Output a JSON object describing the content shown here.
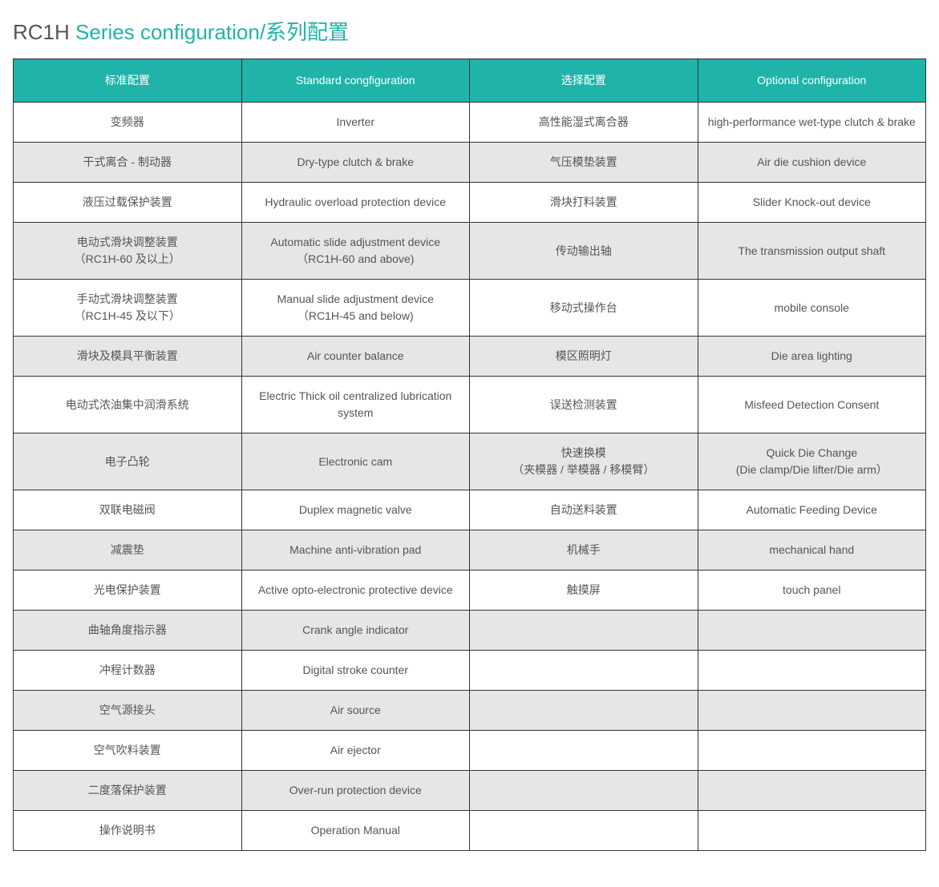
{
  "title": {
    "prefix": "RC1H",
    "main": " Series configuration/系列配置"
  },
  "colors": {
    "header_bg": "#1fb3a9",
    "header_text": "#ffffff",
    "row_odd_bg": "#ffffff",
    "row_even_bg": "#e6e6e6",
    "border": "#333333",
    "cell_text": "#555555",
    "title_prefix": "#555555",
    "title_main": "#21b3a8"
  },
  "table": {
    "type": "table",
    "column_count": 4,
    "headers": [
      "标准配置",
      "Standard congfiguration",
      "选择配置",
      "Optional configuration"
    ],
    "rows": [
      [
        "变频器",
        "Inverter",
        "高性能湿式离合器",
        "high-performance wet-type clutch & brake"
      ],
      [
        "干式离合 - 制动器",
        "Dry-type clutch & brake",
        "气压模垫装置",
        "Air die cushion device"
      ],
      [
        "液压过载保护装置",
        "Hydraulic overload protection device",
        "滑块打料装置",
        "Slider Knock-out device"
      ],
      [
        "电动式滑块调整装置\n（RC1H-60 及以上）",
        "Automatic slide adjustment device\n（RC1H-60 and above)",
        "传动输出轴",
        "The transmission output shaft"
      ],
      [
        "手动式滑块调整装置\n（RC1H-45 及以下）",
        "Manual slide adjustment device\n（RC1H-45 and below)",
        "移动式操作台",
        "mobile console"
      ],
      [
        "滑块及模具平衡装置",
        "Air counter balance",
        "模区照明灯",
        "Die area lighting"
      ],
      [
        "电动式浓油集中润滑系统",
        "Electric Thick oil centralized lubrication system",
        "误送检测装置",
        "Misfeed Detection Consent"
      ],
      [
        "电子凸轮",
        "Electronic cam",
        "快速换模\n（夹模器 / 举模器 / 移模臂）",
        "Quick Die Change\n(Die clamp/Die lifter/Die arm）"
      ],
      [
        "双联电磁阀",
        "Duplex magnetic valve",
        "自动送料装置",
        "Automatic Feeding Device"
      ],
      [
        "减震垫",
        "Machine anti-vibration pad",
        "机械手",
        "mechanical hand"
      ],
      [
        "光电保护装置",
        "Active opto-electronic protective device",
        "触摸屏",
        "touch panel"
      ],
      [
        "曲轴角度指示器",
        "Crank angle indicator",
        "",
        ""
      ],
      [
        "冲程计数器",
        "Digital stroke counter",
        "",
        ""
      ],
      [
        "空气源接头",
        "Air source",
        "",
        ""
      ],
      [
        "空气吹料装置",
        "Air ejector",
        "",
        ""
      ],
      [
        "二度落保护装置",
        "Over-run protection device",
        "",
        ""
      ],
      [
        "操作说明书",
        "Operation Manual",
        "",
        ""
      ]
    ]
  }
}
